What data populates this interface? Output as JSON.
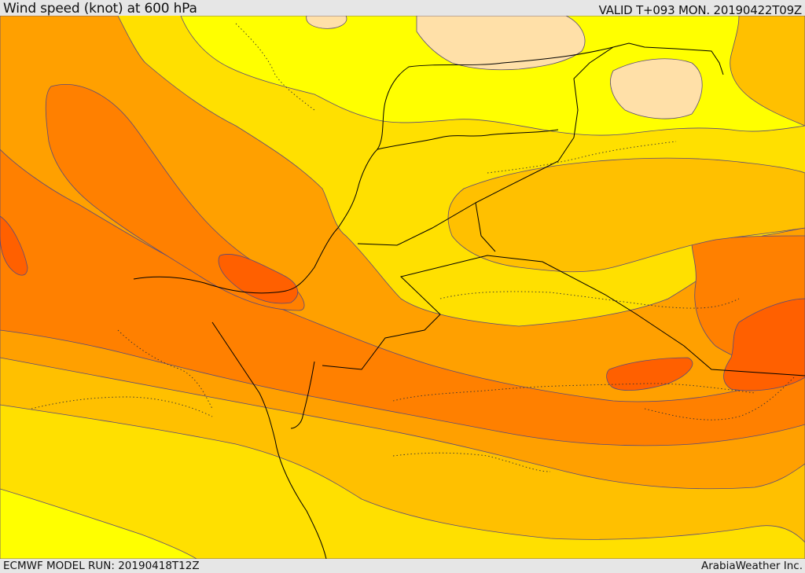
{
  "header": {
    "title": "Wind speed (knot) at 600 hPa",
    "valid": "VALID T+093 MON. 20190422T09Z"
  },
  "footer": {
    "model_run": "ECMWF MODEL RUN: 20190418T12Z",
    "credit": "ArabiaWeather Inc."
  },
  "map": {
    "field": "wind speed",
    "level": "600 hPa",
    "colors": {
      "band_0": "#ffe0a8",
      "band_1": "#ffff00",
      "band_2": "#ffe000",
      "band_3": "#ffc000",
      "band_4": "#ffa000",
      "band_5": "#ff8000",
      "band_6": "#ff6000",
      "contour": "#5a4a7a",
      "border": "#000000"
    }
  }
}
